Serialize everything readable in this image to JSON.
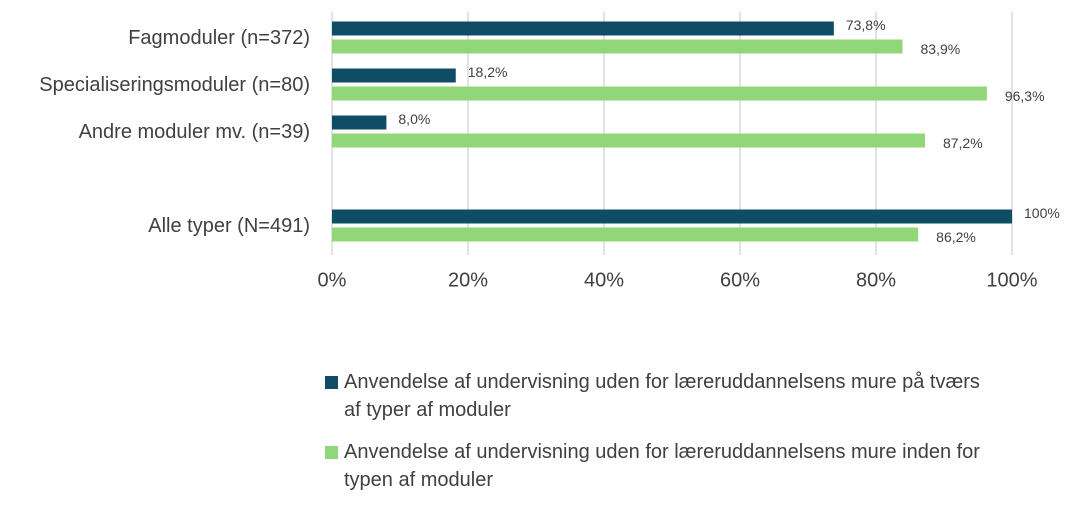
{
  "chart_data": {
    "type": "bar",
    "orientation": "horizontal",
    "categories": [
      "Fagmoduler (n=372)",
      "Specialiseringsmoduler (n=80)",
      "Andre moduler mv. (n=39)",
      null,
      "Alle typer (N=491)"
    ],
    "series": [
      {
        "name": "Anvendelse af undervisning uden for læreruddannelsens mure på tværs af typer af moduler",
        "color": "#0e4d64",
        "values": [
          73.8,
          18.2,
          8.0,
          null,
          100
        ],
        "value_labels": [
          "73,8%",
          "18,2%",
          "8,0%",
          null,
          "100%"
        ]
      },
      {
        "name": "Anvendelse af undervisning uden for læreruddannelsens mure inden for typen af moduler",
        "color": "#92d67a",
        "values": [
          83.9,
          96.3,
          87.2,
          null,
          86.2
        ],
        "value_labels": [
          "83,9%",
          "96,3%",
          "87,2%",
          null,
          "86,2%"
        ]
      }
    ],
    "xlim": [
      0,
      100
    ],
    "xticks": [
      {
        "value": 0,
        "label": "0%"
      },
      {
        "value": 20,
        "label": "20%"
      },
      {
        "value": 40,
        "label": "40%"
      },
      {
        "value": 60,
        "label": "60%"
      },
      {
        "value": 80,
        "label": "80%"
      },
      {
        "value": 100,
        "label": "100%"
      }
    ],
    "grid": true,
    "legend": "bottom"
  }
}
